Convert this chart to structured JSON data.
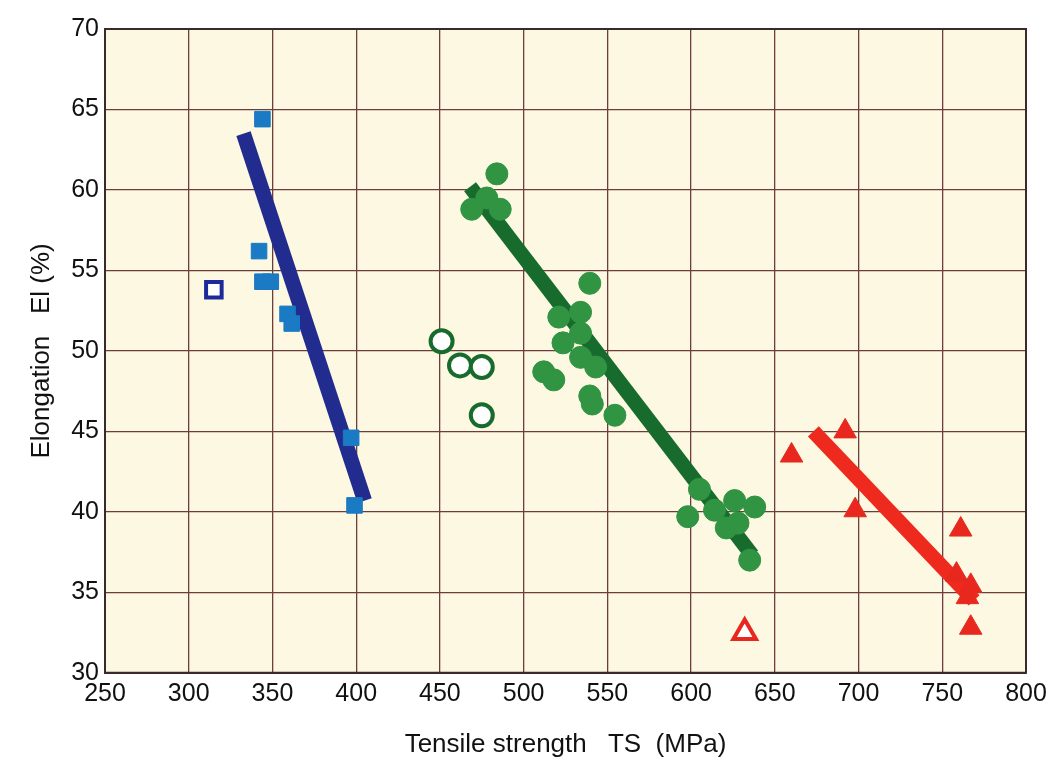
{
  "chart_data": {
    "type": "scatter",
    "xlabel": "Tensile strength   TS  (MPa)",
    "ylabel": "Elongation   El (%)",
    "xlim": [
      250,
      800
    ],
    "xticks": [
      250,
      300,
      350,
      400,
      450,
      500,
      550,
      600,
      650,
      700,
      750,
      800
    ],
    "ylim": [
      30,
      70
    ],
    "yticks": [
      30,
      35,
      40,
      45,
      50,
      55,
      60,
      65,
      70
    ],
    "grid": true,
    "legend": false,
    "series": [
      {
        "type": "line",
        "color": "#222c8e",
        "x": [
          332.7,
          405
        ],
        "values": [
          63.5,
          40.7
        ]
      },
      {
        "type": "line",
        "color": "#176b2c",
        "x": [
          468,
          636.5
        ],
        "values": [
          60.2,
          37.3
        ]
      },
      {
        "type": "line",
        "color": "#ee2a1e",
        "x": [
          673,
          769
        ],
        "values": [
          45.0,
          34.5
        ]
      },
      {
        "type": "scatter",
        "marker": "square",
        "color": "#1a7ac4",
        "x": [
          344,
          342,
          344,
          349,
          359,
          361.5,
          397,
          399
        ],
        "values": [
          64.4,
          56.2,
          54.3,
          54.3,
          52.3,
          51.7,
          44.6,
          40.4
        ]
      },
      {
        "type": "scatter",
        "marker": "square",
        "color": "#1f2a9a",
        "colors": [
          "#ffffff"
        ],
        "x": [
          315
        ],
        "values": [
          53.8
        ]
      },
      {
        "type": "scatter",
        "marker": "circle",
        "color": "#319443",
        "x": [
          484,
          469,
          478,
          486,
          539.5,
          521,
          534,
          534,
          523.5,
          534,
          543,
          512,
          518,
          539.5,
          541,
          554.5,
          605,
          598,
          614,
          626,
          638,
          621,
          628,
          635
        ],
        "values": [
          61.0,
          58.8,
          59.5,
          58.8,
          54.2,
          52.1,
          52.4,
          51.1,
          50.5,
          49.6,
          49.0,
          48.7,
          48.2,
          47.2,
          46.7,
          46.0,
          41.4,
          39.7,
          40.1,
          40.7,
          40.3,
          39.0,
          39.3,
          37.0
        ]
      },
      {
        "type": "scatter",
        "marker": "circle",
        "color": "#176b2c",
        "colors": [
          "#ffffff",
          "#ffffff",
          "#ffffff",
          "#ffffff"
        ],
        "x": [
          451,
          462,
          475,
          475
        ],
        "values": [
          50.6,
          49.1,
          49.0,
          46.0
        ]
      },
      {
        "type": "scatter",
        "marker": "triangle",
        "color": "#e8281e",
        "x": [
          660,
          692,
          698,
          761,
          758.5,
          767,
          765,
          767
        ],
        "values": [
          43.5,
          45.0,
          40.1,
          38.9,
          36.1,
          35.4,
          34.7,
          32.8
        ]
      },
      {
        "type": "scatter",
        "marker": "triangle",
        "color": "#e8281e",
        "colors": [
          "#ffffff"
        ],
        "x": [
          632
        ],
        "values": [
          32.5
        ]
      }
    ]
  }
}
